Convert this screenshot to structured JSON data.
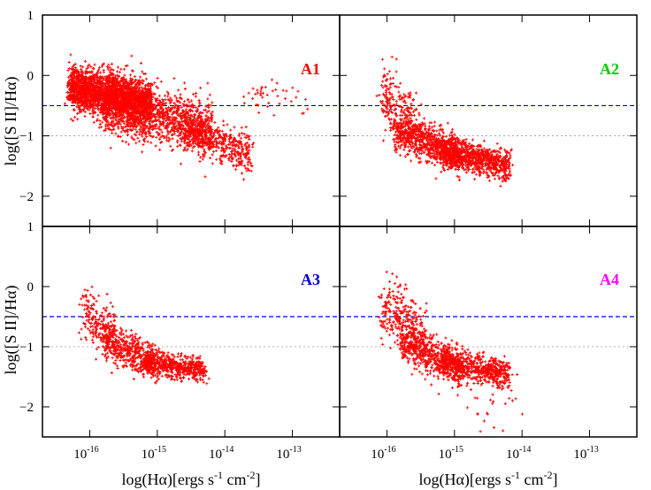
{
  "chart_data": {
    "type": "scatter",
    "layout": "2x2",
    "marker": "+",
    "marker_color": "#ff0000",
    "xscale": "log",
    "xlim": [
      -16.7,
      -12.3
    ],
    "ylim": [
      -2.5,
      1.0
    ],
    "x_tick_labels": [
      "10",
      "10",
      "10",
      "10"
    ],
    "x_tick_exponents": [
      "-16",
      "-15",
      "-14",
      "-13"
    ],
    "x_tick_values": [
      -16,
      -15,
      -14,
      -13
    ],
    "y_ticks": [
      1,
      0,
      -1,
      -2
    ],
    "y_tick_labels": [
      "1",
      "0",
      "−1",
      "−2"
    ],
    "xlabel_main": "log(Hα)[ergs s",
    "xlabel_sup1": "-1",
    "xlabel_mid": " cm",
    "xlabel_sup2": "-2",
    "xlabel_end": "]",
    "ylabel": "log([S II]/Hα)",
    "reference_lines": [
      {
        "y": -0.5,
        "style": "dashed",
        "color": "#0000cc"
      },
      {
        "y": -1.0,
        "style": "dotted",
        "color": "#999999"
      }
    ],
    "panels": [
      {
        "label": "A1",
        "label_color": "#ff0000",
        "clusters": [
          {
            "x": [
              -16.3,
              -15.1
            ],
            "y_at_start": -0.2,
            "y_at_end": -0.45,
            "spread": 0.18,
            "n": 2200
          },
          {
            "x": [
              -15.8,
              -14.2
            ],
            "y_at_start": -0.55,
            "y_at_end": -0.85,
            "spread": 0.22,
            "n": 1200
          },
          {
            "x": [
              -14.6,
              -13.6
            ],
            "y_at_start": -0.9,
            "y_at_end": -1.3,
            "spread": 0.16,
            "n": 450
          },
          {
            "x": [
              -13.8,
              -12.8
            ],
            "y_at_start": -0.4,
            "y_at_end": -0.35,
            "spread": 0.18,
            "n": 40
          }
        ]
      },
      {
        "label": "A2",
        "label_color": "#00cc00",
        "clusters": [
          {
            "x": [
              -16.1,
              -15.5
            ],
            "y_at_start": -0.3,
            "y_at_end": -0.9,
            "spread": 0.25,
            "n": 250
          },
          {
            "x": [
              -15.9,
              -14.9
            ],
            "y_at_start": -0.9,
            "y_at_end": -1.35,
            "spread": 0.15,
            "n": 700
          },
          {
            "x": [
              -15.2,
              -14.2
            ],
            "y_at_start": -1.25,
            "y_at_end": -1.5,
            "spread": 0.12,
            "n": 800
          }
        ]
      },
      {
        "label": "A3",
        "label_color": "#0000cc",
        "clusters": [
          {
            "x": [
              -16.1,
              -15.6
            ],
            "y_at_start": -0.4,
            "y_at_end": -0.9,
            "spread": 0.22,
            "n": 200
          },
          {
            "x": [
              -15.8,
              -15.0
            ],
            "y_at_start": -0.9,
            "y_at_end": -1.3,
            "spread": 0.15,
            "n": 450
          },
          {
            "x": [
              -15.2,
              -14.3
            ],
            "y_at_start": -1.25,
            "y_at_end": -1.4,
            "spread": 0.1,
            "n": 550
          }
        ]
      },
      {
        "label": "A4",
        "label_color": "#ff00ff",
        "clusters": [
          {
            "x": [
              -16.1,
              -15.4
            ],
            "y_at_start": -0.3,
            "y_at_end": -0.9,
            "spread": 0.28,
            "n": 300
          },
          {
            "x": [
              -15.8,
              -14.9
            ],
            "y_at_start": -0.9,
            "y_at_end": -1.35,
            "spread": 0.17,
            "n": 550
          },
          {
            "x": [
              -15.2,
              -14.2
            ],
            "y_at_start": -1.25,
            "y_at_end": -1.45,
            "spread": 0.12,
            "n": 600
          },
          {
            "x": [
              -14.8,
              -14.0
            ],
            "y_at_start": -1.9,
            "y_at_end": -1.8,
            "spread": 0.25,
            "n": 25
          }
        ]
      }
    ]
  }
}
